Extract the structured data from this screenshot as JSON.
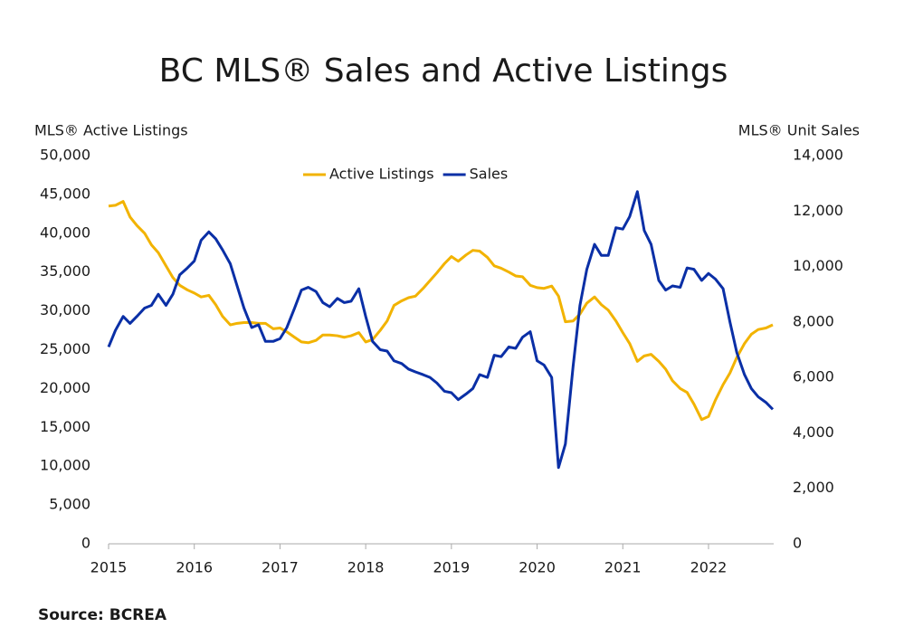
{
  "chart_data": {
    "type": "line",
    "title": "BC MLS® Sales and Active Listings",
    "y_label": "MLS® Active Listings",
    "y2_label": "MLS® Unit Sales",
    "source": "Source: BCREA",
    "legend": "top",
    "x": [
      2015.0,
      2015.08,
      2015.17,
      2015.25,
      2015.33,
      2015.42,
      2015.5,
      2015.58,
      2015.67,
      2015.75,
      2015.83,
      2015.92,
      2016.0,
      2016.08,
      2016.17,
      2016.25,
      2016.33,
      2016.42,
      2016.5,
      2016.58,
      2016.67,
      2016.75,
      2016.83,
      2016.92,
      2017.0,
      2017.08,
      2017.17,
      2017.25,
      2017.33,
      2017.42,
      2017.5,
      2017.58,
      2017.67,
      2017.75,
      2017.83,
      2017.92,
      2018.0,
      2018.08,
      2018.17,
      2018.25,
      2018.33,
      2018.42,
      2018.5,
      2018.58,
      2018.67,
      2018.75,
      2018.83,
      2018.92,
      2019.0,
      2019.08,
      2019.17,
      2019.25,
      2019.33,
      2019.42,
      2019.5,
      2019.58,
      2019.67,
      2019.75,
      2019.83,
      2019.92,
      2020.0,
      2020.08,
      2020.17,
      2020.25,
      2020.33,
      2020.42,
      2020.5,
      2020.58,
      2020.67,
      2020.75,
      2020.83,
      2020.92,
      2021.0,
      2021.08,
      2021.17,
      2021.25,
      2021.33,
      2021.42,
      2021.5,
      2021.58,
      2021.67,
      2021.75,
      2021.83,
      2021.92,
      2022.0,
      2022.08,
      2022.17,
      2022.25,
      2022.33,
      2022.42,
      2022.5,
      2022.58,
      2022.67,
      2022.75
    ],
    "series": [
      {
        "name": "Active Listings",
        "color": "#f2b300",
        "axis": "y",
        "values": [
          43500,
          43600,
          44100,
          42100,
          41000,
          40000,
          38500,
          37500,
          35800,
          34300,
          33300,
          32700,
          32300,
          31800,
          32000,
          30800,
          29300,
          28200,
          28400,
          28500,
          28500,
          28400,
          28400,
          27700,
          27800,
          27300,
          26600,
          26000,
          25900,
          26200,
          26900,
          26900,
          26800,
          26600,
          26800,
          27200,
          26000,
          26300,
          27500,
          28700,
          30700,
          31300,
          31700,
          31900,
          32900,
          33900,
          34900,
          36100,
          37000,
          36400,
          37200,
          37800,
          37700,
          36900,
          35800,
          35500,
          35000,
          34500,
          34400,
          33300,
          33000,
          32900,
          33200,
          31900,
          28600,
          28700,
          29600,
          31000,
          31800,
          30800,
          30100,
          28700,
          27200,
          25800,
          23500,
          24200,
          24400,
          23500,
          22500,
          21000,
          20000,
          19500,
          18000,
          16000,
          16400,
          18500,
          20500,
          22000,
          24000,
          25800,
          27000,
          27600,
          27800,
          28200
        ]
      },
      {
        "name": "Sales",
        "color": "#0a2fa6",
        "axis": "y2",
        "values": [
          7100,
          7700,
          8200,
          7950,
          8200,
          8500,
          8600,
          9000,
          8600,
          9000,
          9700,
          9950,
          10200,
          10950,
          11250,
          11000,
          10600,
          10100,
          9300,
          8500,
          7800,
          7900,
          7300,
          7300,
          7400,
          7800,
          8500,
          9150,
          9250,
          9100,
          8700,
          8550,
          8850,
          8700,
          8750,
          9200,
          8200,
          7300,
          7000,
          6950,
          6600,
          6500,
          6300,
          6200,
          6100,
          6000,
          5800,
          5500,
          5450,
          5200,
          5400,
          5600,
          6100,
          6000,
          6800,
          6750,
          7100,
          7050,
          7450,
          7650,
          6600,
          6450,
          6000,
          2750,
          3600,
          6400,
          8600,
          9900,
          10800,
          10400,
          10400,
          11400,
          11350,
          11800,
          12700,
          11300,
          10800,
          9500,
          9150,
          9300,
          9250,
          9950,
          9900,
          9500,
          9750,
          9550,
          9200,
          8000,
          6900,
          6100,
          5600,
          5300,
          5100,
          4850
        ]
      }
    ],
    "xlim": [
      2015,
      2022.75
    ],
    "xticks": [
      2015,
      2016,
      2017,
      2018,
      2019,
      2020,
      2021,
      2022
    ],
    "ylim": [
      0,
      50000
    ],
    "yticks": [
      0,
      {
        "value": 5000,
        "label": "5,000"
      },
      {
        "value": 10000,
        "label": "10,000"
      },
      {
        "value": 15000,
        "label": "15,000"
      },
      {
        "value": 20000,
        "label": "20,000"
      },
      {
        "value": 25000,
        "label": "25,000"
      },
      {
        "value": 30000,
        "label": "30,000"
      },
      {
        "value": 35000,
        "label": "35,000"
      },
      {
        "value": 40000,
        "label": "40,000"
      },
      {
        "value": 45000,
        "label": "45,000"
      },
      {
        "value": 50000,
        "label": "50,000"
      }
    ],
    "y2lim": [
      0,
      14000
    ],
    "y2ticks": [
      0,
      {
        "value": 2000,
        "label": "2,000"
      },
      {
        "value": 4000,
        "label": "4,000"
      },
      {
        "value": 6000,
        "label": "6,000"
      },
      {
        "value": 8000,
        "label": "8,000"
      },
      {
        "value": 10000,
        "label": "10,000"
      },
      {
        "value": 12000,
        "label": "12,000"
      },
      {
        "value": 14000,
        "label": "14,000"
      }
    ],
    "grid": false
  }
}
